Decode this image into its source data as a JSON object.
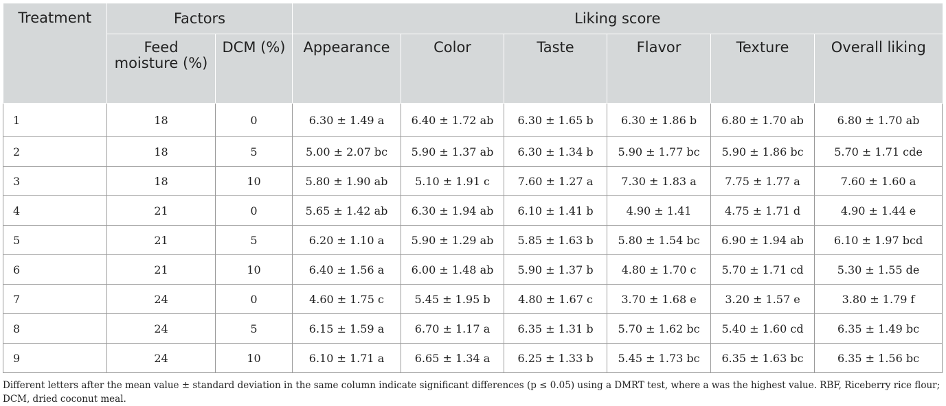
{
  "table": {
    "header": {
      "treatment": "Treatment",
      "factors": "Factors",
      "liking_score": "Liking score",
      "feed_moisture": "Feed moisture (%)",
      "dcm": "DCM (%)",
      "appearance": "Appearance",
      "color": "Color",
      "taste": "Taste",
      "flavor": "Flavor",
      "texture": "Texture",
      "overall_liking": "Overall liking"
    },
    "rows": [
      [
        "1",
        "18",
        "0",
        "6.30 ± 1.49 a",
        "6.40 ± 1.72 ab",
        "6.30 ± 1.65 b",
        "6.30 ± 1.86 b",
        "6.80 ± 1.70 ab",
        "6.80 ± 1.70 ab"
      ],
      [
        "2",
        "18",
        "5",
        "5.00 ± 2.07 bc",
        "5.90 ± 1.37 ab",
        "6.30 ± 1.34 b",
        "5.90 ± 1.77 bc",
        "5.90 ± 1.86 bc",
        "5.70 ± 1.71 cde"
      ],
      [
        "3",
        "18",
        "10",
        "5.80 ± 1.90 ab",
        "5.10 ± 1.91 c",
        "7.60 ± 1.27 a",
        "7.30 ± 1.83 a",
        "7.75 ± 1.77 a",
        "7.60 ± 1.60 a"
      ],
      [
        "4",
        "21",
        "0",
        "5.65 ± 1.42 ab",
        "6.30 ± 1.94 ab",
        "6.10 ± 1.41 b",
        "4.90 ± 1.41",
        "4.75 ± 1.71 d",
        "4.90 ± 1.44 e"
      ],
      [
        "5",
        "21",
        "5",
        "6.20 ± 1.10 a",
        "5.90 ± 1.29 ab",
        "5.85 ± 1.63 b",
        "5.80 ± 1.54 bc",
        "6.90 ± 1.94 ab",
        "6.10 ± 1.97 bcd"
      ],
      [
        "6",
        "21",
        "10",
        "6.40 ± 1.56 a",
        "6.00 ± 1.48 ab",
        "5.90 ± 1.37 b",
        "4.80 ± 1.70 c",
        "5.70 ± 1.71 cd",
        "5.30 ± 1.55 de"
      ],
      [
        "7",
        "24",
        "0",
        "4.60 ± 1.75 c",
        "5.45 ± 1.95 b",
        "4.80 ± 1.67 c",
        "3.70 ± 1.68 e",
        "3.20 ± 1.57 e",
        "3.80 ± 1.79 f"
      ],
      [
        "8",
        "24",
        "5",
        "6.15 ± 1.59 a",
        "6.70 ± 1.17 a",
        "6.35 ± 1.31 b",
        "5.70 ± 1.62 bc",
        "5.40 ± 1.60 cd",
        "6.35 ± 1.49 bc"
      ],
      [
        "9",
        "24",
        "10",
        "6.10 ± 1.71 a",
        "6.65 ± 1.34 a",
        "6.25 ± 1.33 b",
        "5.45 ± 1.73 bc",
        "6.35 ± 1.63 bc",
        "6.35 ± 1.56 bc"
      ]
    ]
  },
  "footnote": "Different letters after the mean value ± standard deviation in the same column indicate significant differences (p ≤ 0.05) using a DMRT test, where a was the highest value. RBF, Riceberry rice flour; DCM, dried coconut meal."
}
